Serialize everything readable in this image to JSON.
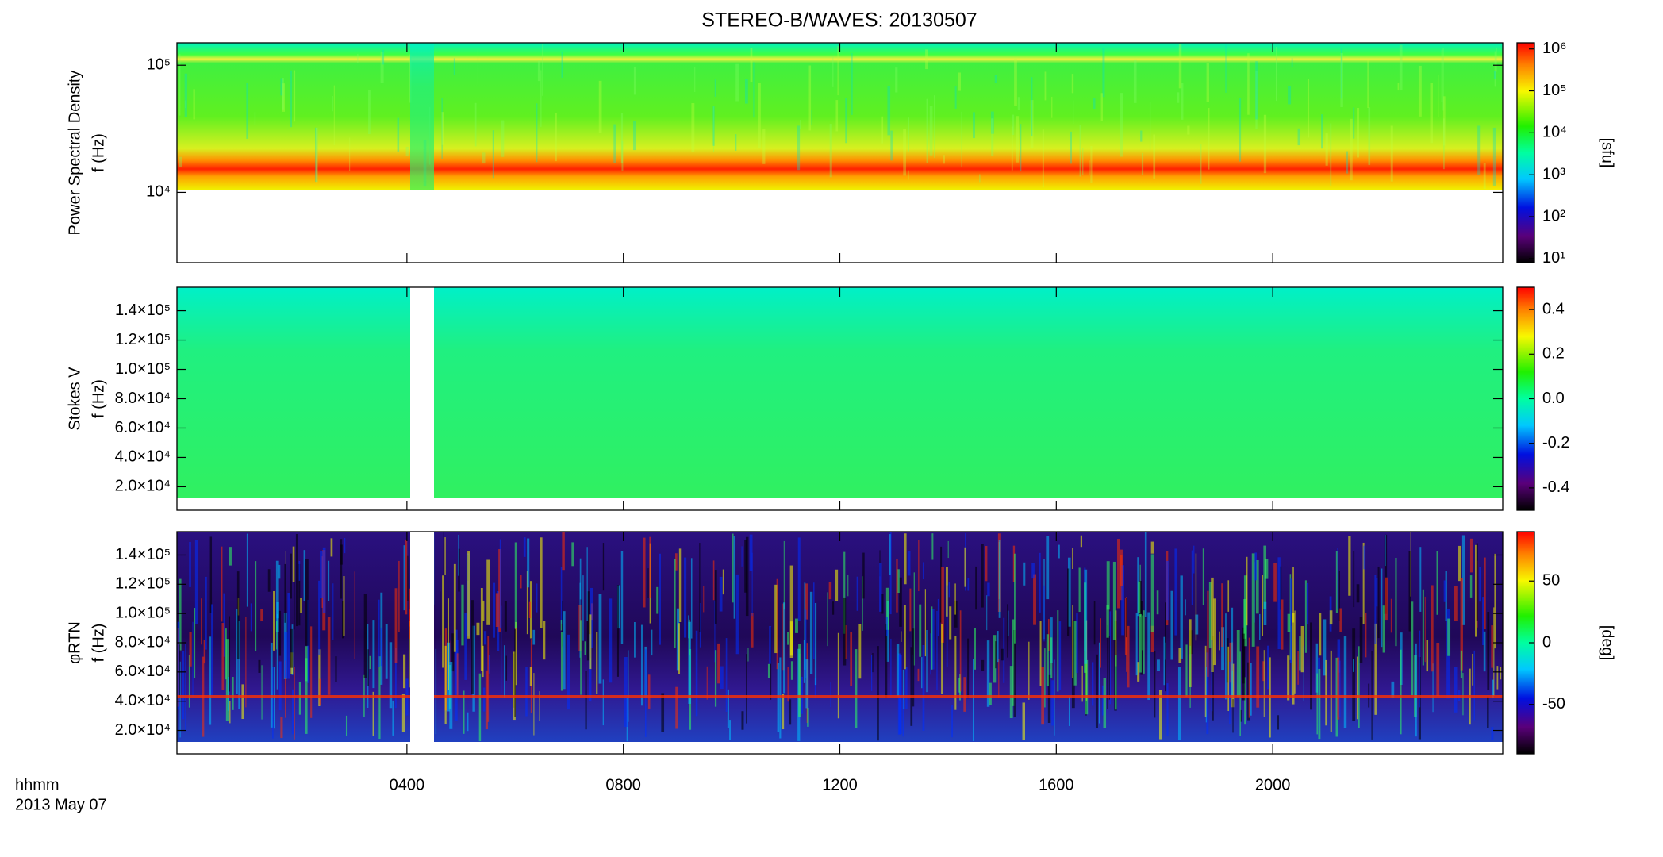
{
  "chart_data": [
    {
      "type": "heatmap",
      "title": "STEREO-B/WAVES: 20130507",
      "y_label": [
        "Power Spectral Density",
        "f (Hz)"
      ],
      "ylog": true,
      "ylim": [
        2800,
        150000
      ],
      "yticks": [
        {
          "value": 10000,
          "label": "10⁴"
        },
        {
          "value": 100000,
          "label": "10⁵"
        }
      ],
      "clog": true,
      "clim": [
        8,
        1400000
      ],
      "clabel": "[sfu]",
      "cticks": [
        {
          "value": 10,
          "label": "10¹"
        },
        {
          "value": 100,
          "label": "10²"
        },
        {
          "value": 1000,
          "label": "10³"
        },
        {
          "value": 10000,
          "label": "10⁴"
        },
        {
          "value": 100000,
          "label": "10⁵"
        },
        {
          "value": 1000000,
          "label": "10⁶"
        }
      ]
    },
    {
      "type": "heatmap",
      "y_label": [
        "Stokes V",
        "f (Hz)"
      ],
      "ylog": false,
      "ylim": [
        4000,
        156000
      ],
      "yticks": [
        {
          "value": 20000,
          "label": "2.0×10⁴"
        },
        {
          "value": 40000,
          "label": "4.0×10⁴"
        },
        {
          "value": 60000,
          "label": "6.0×10⁴"
        },
        {
          "value": 80000,
          "label": "8.0×10⁴"
        },
        {
          "value": 100000,
          "label": "1.0×10⁵"
        },
        {
          "value": 120000,
          "label": "1.2×10⁵"
        },
        {
          "value": 140000,
          "label": "1.4×10⁵"
        }
      ],
      "clog": false,
      "clim": [
        -0.5,
        0.5
      ],
      "cticks": [
        -0.4,
        -0.2,
        {
          "value": 0,
          "label": "0.0"
        },
        0.2,
        0.4
      ]
    },
    {
      "type": "heatmap",
      "y_label": [
        "φRTN",
        "f (Hz)"
      ],
      "ylog": false,
      "ylim": [
        4000,
        156000
      ],
      "yticks": [
        {
          "value": 20000,
          "label": "2.0×10⁴"
        },
        {
          "value": 40000,
          "label": "4.0×10⁴"
        },
        {
          "value": 60000,
          "label": "6.0×10⁴"
        },
        {
          "value": 80000,
          "label": "8.0×10⁴"
        },
        {
          "value": 100000,
          "label": "1.0×10⁵"
        },
        {
          "value": 120000,
          "label": "1.2×10⁵"
        },
        {
          "value": 140000,
          "label": "1.4×10⁵"
        }
      ],
      "clog": false,
      "clim": [
        -90,
        90
      ],
      "clabel": "[deg]",
      "cticks": [
        -50,
        0,
        50
      ],
      "xlim": [
        -0.25,
        24.25
      ],
      "xticks": [
        {
          "value": 4,
          "label": "0400"
        },
        {
          "value": 8,
          "label": "0800"
        },
        {
          "value": 12,
          "label": "1200"
        },
        {
          "value": 16,
          "label": "1600"
        },
        {
          "value": 20,
          "label": "2000"
        }
      ],
      "x_label": [
        "hhmm",
        "2013 May 07"
      ]
    }
  ]
}
